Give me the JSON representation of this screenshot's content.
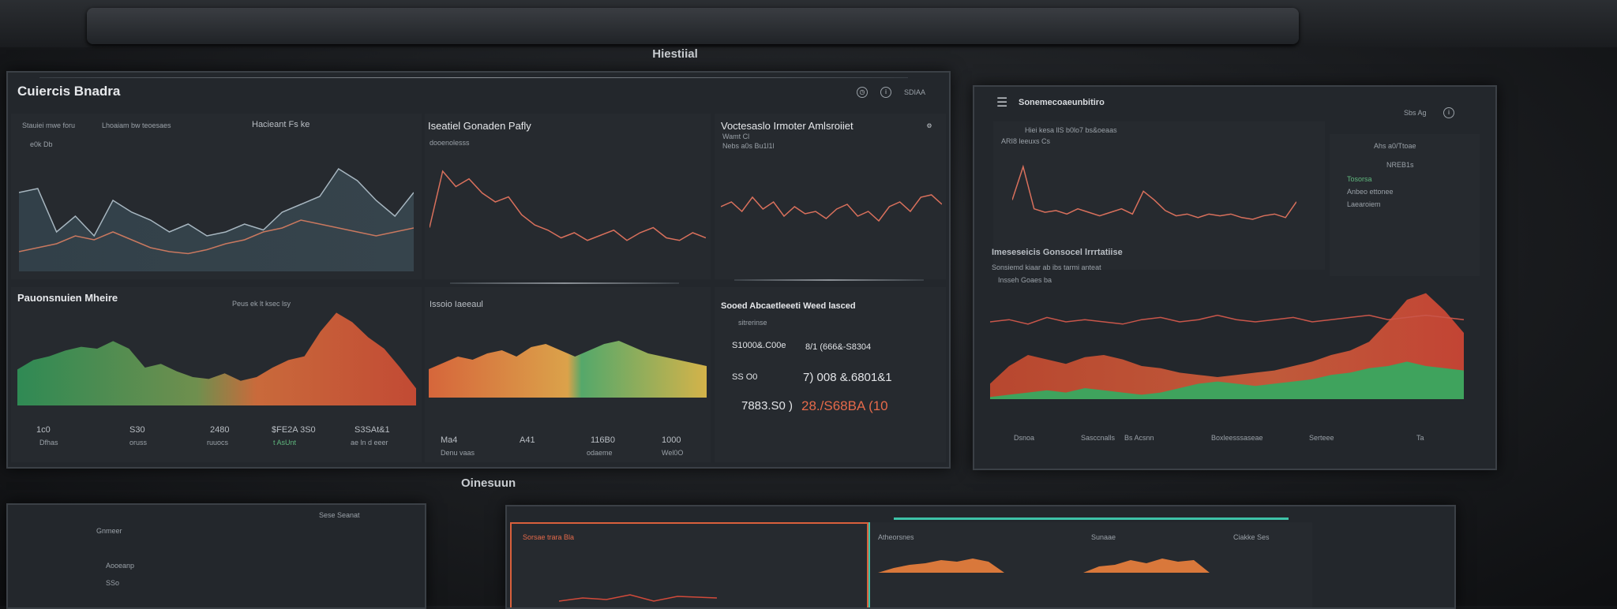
{
  "top_label": "Hiestiial",
  "bottom_label": "Oinesuun",
  "left_screen": {
    "title": "Cuiercis Bnadra",
    "header_small": "SDIAA",
    "panel_a": {
      "legend1": "Stauiei mwe foru",
      "legend2": "Lhoaiam bw teoesaes",
      "mini_title": "Hacieant Fs ke",
      "tick": "e0k Db"
    },
    "panel_b": {
      "title": "Iseatiel Gonaden Pafly",
      "subtitle": "dooenolesss"
    },
    "panel_c": {
      "title": "Voctesaslo Irmoter Amlsroiiet",
      "subtitle1": "Wamt Cl",
      "subtitle2": "Nebs a0s Bu1l1l"
    },
    "panel_d": {
      "title": "Pauonsnuien Mheire",
      "subtitle": "Peus ek lt ksec lsy",
      "stats": [
        "1c0",
        "S30",
        "2480",
        "$FE2A 3S0",
        "S3SAt&1"
      ],
      "stat_subs": [
        "Dfhas",
        "oruss",
        "ruuocs",
        "t AsUnt",
        "ae ln d eeer"
      ]
    },
    "panel_e": {
      "title": "Issoio Iaeeaul",
      "stats": [
        "Ma4",
        "A41",
        "116B0",
        "1000"
      ],
      "stat_subs": [
        "Denu vaas",
        "",
        "odaeme",
        "Wel0O"
      ]
    },
    "panel_f": {
      "title": "Sooed Abcaetleeeti Weed lasced",
      "subtitle": "sitrerinse",
      "rows": [
        {
          "left": "S1000&.C00e",
          "right": "8/1 (666&-S8304",
          "right_color": "#e2e4e7"
        },
        {
          "left": "SS O0",
          "right": "7) 008 &.6801&1",
          "right_color": "#e2e4e7"
        },
        {
          "left": "7883.S0 )",
          "right": "28./S68BA (10",
          "right_color": "#e56a4a"
        }
      ]
    }
  },
  "right_screen": {
    "title": "Sonemecoaeunbitiro",
    "header_small": "Sbs Ag",
    "top_chart": {
      "legend": "Hiei kesa llS b0lo7 bs&oeaas",
      "tick": "ARI8 leeuxs Cs"
    },
    "side_legend": {
      "title": "Ahs a0/Ttoae",
      "subtitle": "NREB1s",
      "items": [
        "Tosorsa",
        "Anbeo ettonee",
        "Laearoiem"
      ],
      "colors": [
        "#5fb77d",
        "#5fb77d",
        "#9aa1a8"
      ]
    },
    "mid": {
      "title": "Imeseseicis Gonsocel lrrrtatiise",
      "subtitle": "Sonsiemd kiaar ab ibs tarmi anteat",
      "label": "Insseh Goaes ba"
    },
    "bottom_ticks": [
      "Dsnoa",
      "Sasccnalls",
      "Bs Acsnn",
      "Boxleesssaseae",
      "Serteee",
      "Ta"
    ]
  },
  "bottom_left": {
    "header": "Sese Seanat",
    "items": [
      "Gnmeer",
      "Aooeanp",
      "SSo"
    ]
  },
  "bottom_right": {
    "panel1_title": "Sorsae trara Bla",
    "panel2_title": "Atheorsnes",
    "panel2_a": "Sunaae",
    "panel2_b": "Ciakke Ses"
  },
  "chart_data": [
    {
      "type": "line",
      "title": "",
      "series": [
        {
          "name": "",
          "values": [
            40,
            42,
            20,
            28,
            18,
            36,
            30,
            26,
            20,
            24,
            18,
            20,
            24,
            21,
            30,
            34,
            38,
            52,
            46,
            36,
            28,
            40
          ]
        },
        {
          "name": "",
          "values": [
            10,
            12,
            14,
            18,
            16,
            20,
            16,
            12,
            10,
            9,
            11,
            14,
            16,
            20,
            22,
            26,
            24,
            22,
            20,
            18,
            20,
            22
          ]
        }
      ]
    },
    {
      "type": "line",
      "title": "Iseatiel Gonaden Pafly",
      "series": [
        {
          "name": "",
          "values": [
            28,
            72,
            60,
            66,
            55,
            48,
            52,
            38,
            30,
            26,
            20,
            24,
            18,
            22,
            26,
            18,
            24,
            28,
            20,
            18,
            24,
            20
          ]
        }
      ]
    },
    {
      "type": "line",
      "title": "Voctesaslo Irmoter Amlsroiiet",
      "series": [
        {
          "name": "",
          "values": [
            48,
            52,
            44,
            56,
            46,
            52,
            40,
            48,
            42,
            44,
            38,
            46,
            50,
            40,
            44,
            36,
            48,
            52,
            44,
            56,
            58,
            50
          ]
        }
      ]
    },
    {
      "type": "area",
      "title": "Pauonsnuien Mheire",
      "series": [
        {
          "name": "",
          "values": [
            38,
            48,
            52,
            58,
            62,
            60,
            68,
            60,
            40,
            44,
            36,
            30,
            28,
            34,
            26,
            30,
            40,
            48,
            52,
            78,
            98,
            88,
            72,
            60,
            40,
            18
          ]
        }
      ]
    },
    {
      "type": "area",
      "title": "Issoio Iaeeaul",
      "series": [
        {
          "name": "",
          "values": [
            18,
            22,
            26,
            24,
            28,
            30,
            26,
            32,
            34,
            30,
            26,
            30,
            34,
            36,
            32,
            28,
            26,
            24,
            22,
            20
          ]
        }
      ]
    },
    {
      "type": "line",
      "title": "",
      "series": [
        {
          "name": "",
          "values": [
            40,
            78,
            30,
            26,
            28,
            24,
            30,
            26,
            22,
            26,
            30,
            24,
            50,
            40,
            28,
            22,
            24,
            20,
            24,
            22,
            24,
            20,
            18,
            22,
            24,
            20,
            38
          ]
        }
      ]
    },
    {
      "type": "area",
      "title": "",
      "series": [
        {
          "name": "",
          "values": [
            14,
            30,
            40,
            36,
            32,
            38,
            40,
            36,
            30,
            28,
            24,
            22,
            20,
            22,
            24,
            26,
            30,
            34,
            40,
            44,
            52,
            70,
            90,
            96,
            80,
            60
          ]
        },
        {
          "name": "",
          "values": [
            2,
            4,
            6,
            8,
            6,
            10,
            8,
            6,
            4,
            6,
            10,
            14,
            16,
            14,
            12,
            14,
            16,
            18,
            22,
            24,
            28,
            30,
            34,
            30,
            28,
            26
          ]
        },
        {
          "name": "",
          "values": [
            70,
            72,
            68,
            74,
            70,
            72,
            70,
            68,
            72,
            74,
            70,
            72,
            76,
            72,
            70,
            72,
            74,
            70,
            72,
            74,
            76,
            72,
            74,
            76,
            74,
            72
          ]
        }
      ]
    }
  ]
}
